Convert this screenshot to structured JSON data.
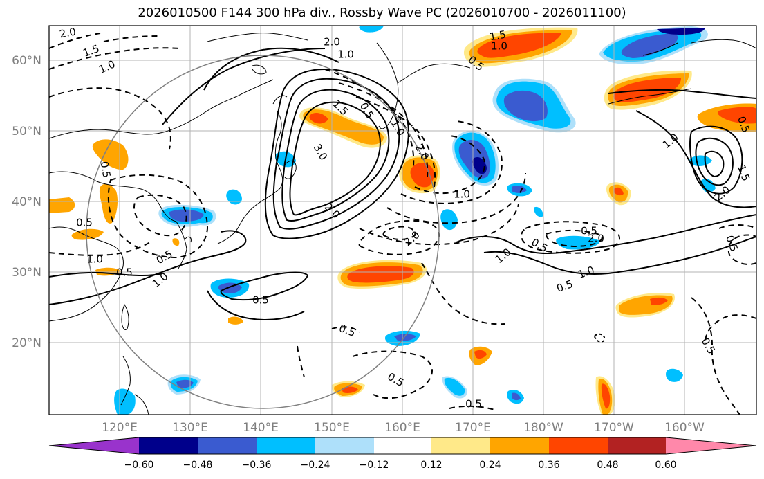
{
  "title": "2026010500 F144 300 hPa div., Rossby Wave PC (2026010700 - 2026011100)",
  "axes": {
    "lat_labels": [
      "20°N",
      "30°N",
      "40°N",
      "50°N",
      "60°N"
    ],
    "lon_labels": [
      "120°E",
      "130°E",
      "140°E",
      "150°E",
      "160°E",
      "170°E",
      "180°W",
      "170°W",
      "160°W"
    ]
  },
  "colorbar": {
    "levels": [
      "−0.60",
      "−0.48",
      "−0.36",
      "−0.24",
      "−0.12",
      "0.12",
      "0.24",
      "0.36",
      "0.48",
      "0.60"
    ],
    "colors": [
      "#9933cc",
      "#00008b",
      "#3a5bd0",
      "#00bfff",
      "#aee0fa",
      "#ffffff",
      "#ffe989",
      "#ffa500",
      "#ff4500",
      "#b22222",
      "#ff88aa"
    ]
  },
  "contour_labels": [
    {
      "text": "2.0",
      "rot": -10
    },
    {
      "text": "1.5",
      "rot": -20
    },
    {
      "text": "1.0",
      "rot": -25
    },
    {
      "text": "2.0",
      "rot": 0
    },
    {
      "text": "1.0",
      "rot": 0
    },
    {
      "text": "1.5",
      "rot": -10
    },
    {
      "text": "1.0",
      "rot": 0
    },
    {
      "text": "0.5",
      "rot": 40
    },
    {
      "text": "1.5",
      "rot": 45
    },
    {
      "text": "0.5",
      "rot": 60
    },
    {
      "text": "1.0",
      "rot": 60
    },
    {
      "text": "2.0",
      "rot": 60
    },
    {
      "text": "3.0",
      "rot": 60
    },
    {
      "text": "2.0",
      "rot": 45
    },
    {
      "text": "0.5",
      "rot": 80
    },
    {
      "text": "0.5",
      "rot": 0
    },
    {
      "text": "1.0",
      "rot": 0
    },
    {
      "text": "0.5",
      "rot": -30
    },
    {
      "text": "0.5",
      "rot": 0
    },
    {
      "text": "1.0",
      "rot": -40
    },
    {
      "text": "0.5",
      "rot": 0
    },
    {
      "text": "0.5",
      "rot": 20
    },
    {
      "text": "0.5",
      "rot": 30
    },
    {
      "text": "0.5",
      "rot": 0
    },
    {
      "text": "1.0",
      "rot": 0
    },
    {
      "text": "2.0",
      "rot": -40
    },
    {
      "text": "1.0",
      "rot": -40
    },
    {
      "text": "0.5",
      "rot": 30
    },
    {
      "text": "1.0",
      "rot": -20
    },
    {
      "text": "0.5",
      "rot": -20
    },
    {
      "text": "0.5",
      "rot": 0
    },
    {
      "text": "2.0",
      "rot": 0
    },
    {
      "text": "1.0",
      "rot": -40
    },
    {
      "text": "1.5",
      "rot": 70
    },
    {
      "text": "2.0",
      "rot": -40
    },
    {
      "text": "0.5",
      "rot": 70
    },
    {
      "text": "0.5",
      "rot": 70
    },
    {
      "text": "0.5",
      "rot": 60
    }
  ]
}
